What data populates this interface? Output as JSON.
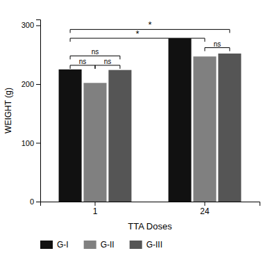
{
  "chart_data": {
    "type": "bar",
    "categories": [
      "1",
      "24"
    ],
    "series": [
      {
        "name": "G-I",
        "color": "#111111",
        "values": [
          225,
          278
        ]
      },
      {
        "name": "G-II",
        "color": "#808080",
        "values": [
          202,
          247
        ]
      },
      {
        "name": "G-III",
        "color": "#555555",
        "values": [
          224,
          252
        ]
      }
    ],
    "xlabel": "TTA Doses",
    "ylabel": "WEIGHT (g)",
    "ylim": [
      0,
      310
    ],
    "yticks": [
      0,
      100,
      200,
      300
    ],
    "grid": false,
    "legend": "bottom",
    "annotations": [
      {
        "text": "ns",
        "y": 232,
        "start": {
          "category": "1",
          "series": "G-I"
        },
        "end": {
          "category": "1",
          "series": "G-II"
        }
      },
      {
        "text": "ns",
        "y": 232,
        "start": {
          "category": "1",
          "series": "G-II"
        },
        "end": {
          "category": "1",
          "series": "G-III"
        }
      },
      {
        "text": "ns",
        "y": 248,
        "start": {
          "category": "1",
          "series": "G-I"
        },
        "end": {
          "category": "1",
          "series": "G-III"
        }
      },
      {
        "text": "ns",
        "y": 262,
        "start": {
          "category": "24",
          "series": "G-II"
        },
        "end": {
          "category": "24",
          "series": "G-III"
        }
      },
      {
        "text": "*",
        "y": 278,
        "start": {
          "category": "1",
          "series": "G-I"
        },
        "end": {
          "category": "24",
          "series": "G-II"
        }
      },
      {
        "text": "*",
        "y": 293,
        "start": {
          "category": "1",
          "series": "G-I"
        },
        "end": {
          "category": "24",
          "series": "G-III"
        }
      }
    ]
  }
}
